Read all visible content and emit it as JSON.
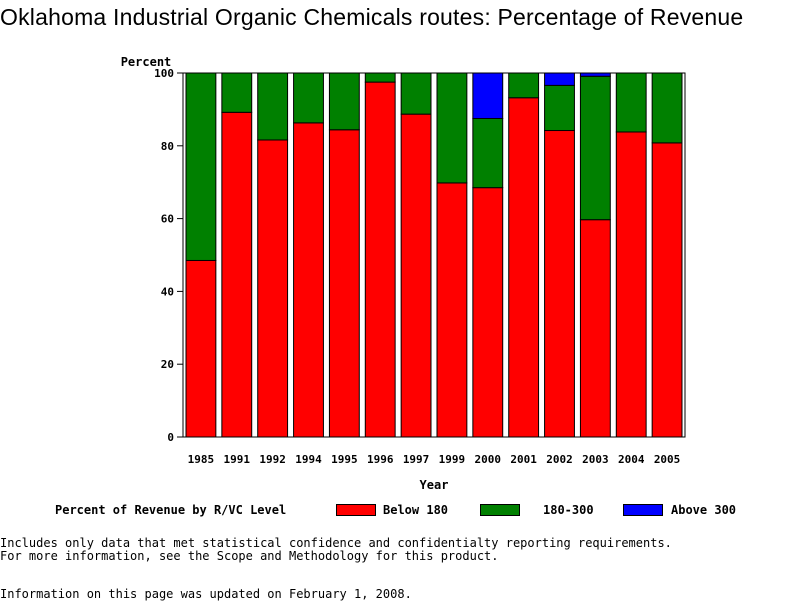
{
  "page": {
    "title": "Oklahoma Industrial Organic Chemicals routes: Percentage of Revenue",
    "legend_title": "Percent of Revenue by R/VC Level",
    "footnote_1": "Includes only data that met statistical confidence and confidentialty reporting requirements.",
    "footnote_2": "For more information, see the Scope and Methodology for this product.",
    "updated": "Information on this page was updated on February 1, 2008."
  },
  "chart_data": {
    "type": "bar",
    "stacked": true,
    "title": "Oklahoma Industrial Organic Chemicals routes: Percentage of Revenue",
    "xlabel": "Year",
    "ylabel": "Percent",
    "ylim": [
      0,
      100
    ],
    "yticks": [
      0,
      20,
      40,
      60,
      80,
      100
    ],
    "legend_position": "bottom",
    "categories": [
      "1985",
      "1991",
      "1992",
      "1994",
      "1995",
      "1996",
      "1997",
      "1999",
      "2000",
      "2001",
      "2002",
      "2003",
      "2004",
      "2005"
    ],
    "series": [
      {
        "name": "Below 180",
        "color": "#ff0000",
        "values": [
          48.5,
          89.2,
          81.6,
          86.3,
          84.4,
          97.5,
          88.7,
          69.8,
          68.5,
          93.2,
          84.2,
          59.7,
          83.8,
          80.8
        ]
      },
      {
        "name": "180-300",
        "color": "#008000",
        "values": [
          51.5,
          10.8,
          18.4,
          13.7,
          15.6,
          2.5,
          11.3,
          30.2,
          19.0,
          6.8,
          12.4,
          39.4,
          16.2,
          19.2
        ]
      },
      {
        "name": "Above 300",
        "color": "#0000ff",
        "values": [
          0,
          0,
          0,
          0,
          0,
          0,
          0,
          0,
          12.5,
          0,
          3.4,
          0.9,
          0,
          0
        ]
      }
    ]
  }
}
